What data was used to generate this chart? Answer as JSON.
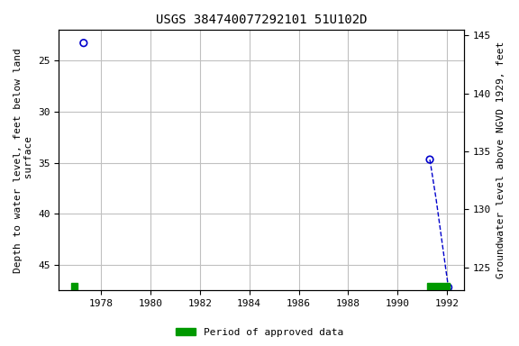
{
  "title": "USGS 384740077292101 51U102D",
  "ylabel_left": "Depth to water level, feet below land\n surface",
  "ylabel_right": "Groundwater level above NGVD 1929, feet",
  "ylim_left": [
    22,
    47.5
  ],
  "ylim_right": [
    145.5,
    123.0
  ],
  "xlim": [
    1976.3,
    1992.7
  ],
  "xticks": [
    1978,
    1980,
    1982,
    1984,
    1986,
    1988,
    1990,
    1992
  ],
  "yticks_left": [
    25,
    30,
    35,
    40,
    45
  ],
  "yticks_right": [
    145,
    140,
    135,
    130,
    125
  ],
  "scatter_x": [
    1977.3,
    1991.3
  ],
  "scatter_y": [
    23.3,
    34.7
  ],
  "line_x": [
    1991.3,
    1991.55,
    1991.75,
    1991.95,
    1992.05
  ],
  "line_y": [
    34.7,
    38.5,
    42.0,
    45.5,
    47.2
  ],
  "endpoint_x": 1992.05,
  "endpoint_y": 47.2,
  "approved_x1_start": 1976.8,
  "approved_x1_end": 1977.05,
  "approved_x2_start": 1991.2,
  "approved_x2_end": 1992.1,
  "point_color": "#0000cc",
  "line_color": "#0000cc",
  "approved_color": "#009900",
  "bg_color": "#ffffff",
  "grid_color": "#c0c0c0",
  "title_fontsize": 10,
  "axis_label_fontsize": 8,
  "tick_fontsize": 8,
  "legend_fontsize": 8
}
